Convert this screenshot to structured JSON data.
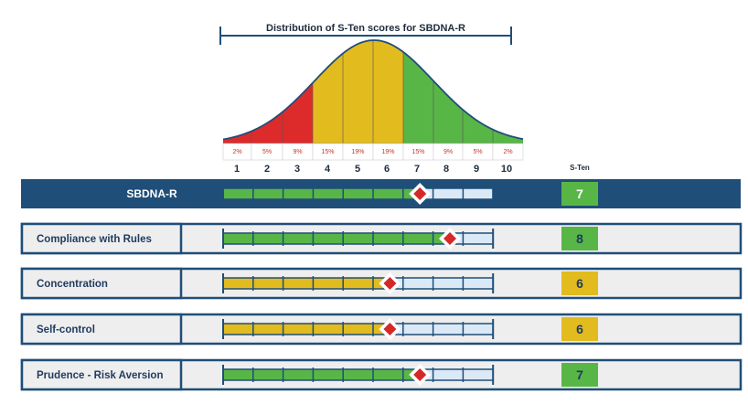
{
  "chart_data": {
    "type": "bar",
    "title": "Distribution of S-Ten scores for SBDNA-R",
    "scale_header": "S-Ten",
    "sten_ticks": [
      "1",
      "2",
      "3",
      "4",
      "5",
      "6",
      "7",
      "8",
      "9",
      "10"
    ],
    "distribution_percent": [
      "2%",
      "5%",
      "9%",
      "15%",
      "19%",
      "19%",
      "15%",
      "9%",
      "5%",
      "2%"
    ],
    "distribution_values": [
      2,
      5,
      9,
      15,
      19,
      19,
      15,
      9,
      5,
      2
    ],
    "band_colors": {
      "low": "#dd2b2b",
      "mid": "#e2bb1e",
      "high": "#58b646",
      "empty": "#dbe9f7",
      "line": "#1f4e79",
      "marker": "#d62828",
      "score_text": "#1f3a5f"
    },
    "xlim": [
      1,
      10
    ],
    "rows": [
      {
        "label": "SBDNA-R",
        "score": 7,
        "display": "7",
        "color": "#58b646",
        "main": true
      },
      {
        "label": "Compliance with Rules",
        "score": 8,
        "display": "8",
        "color": "#58b646",
        "main": false
      },
      {
        "label": "Concentration",
        "score": 6,
        "display": "6",
        "color": "#e2bb1e",
        "main": false
      },
      {
        "label": "Self-control",
        "score": 6,
        "display": "6",
        "color": "#e2bb1e",
        "main": false
      },
      {
        "label": "Prudence - Risk Aversion",
        "score": 7,
        "display": "7",
        "color": "#58b646",
        "main": false
      }
    ]
  }
}
